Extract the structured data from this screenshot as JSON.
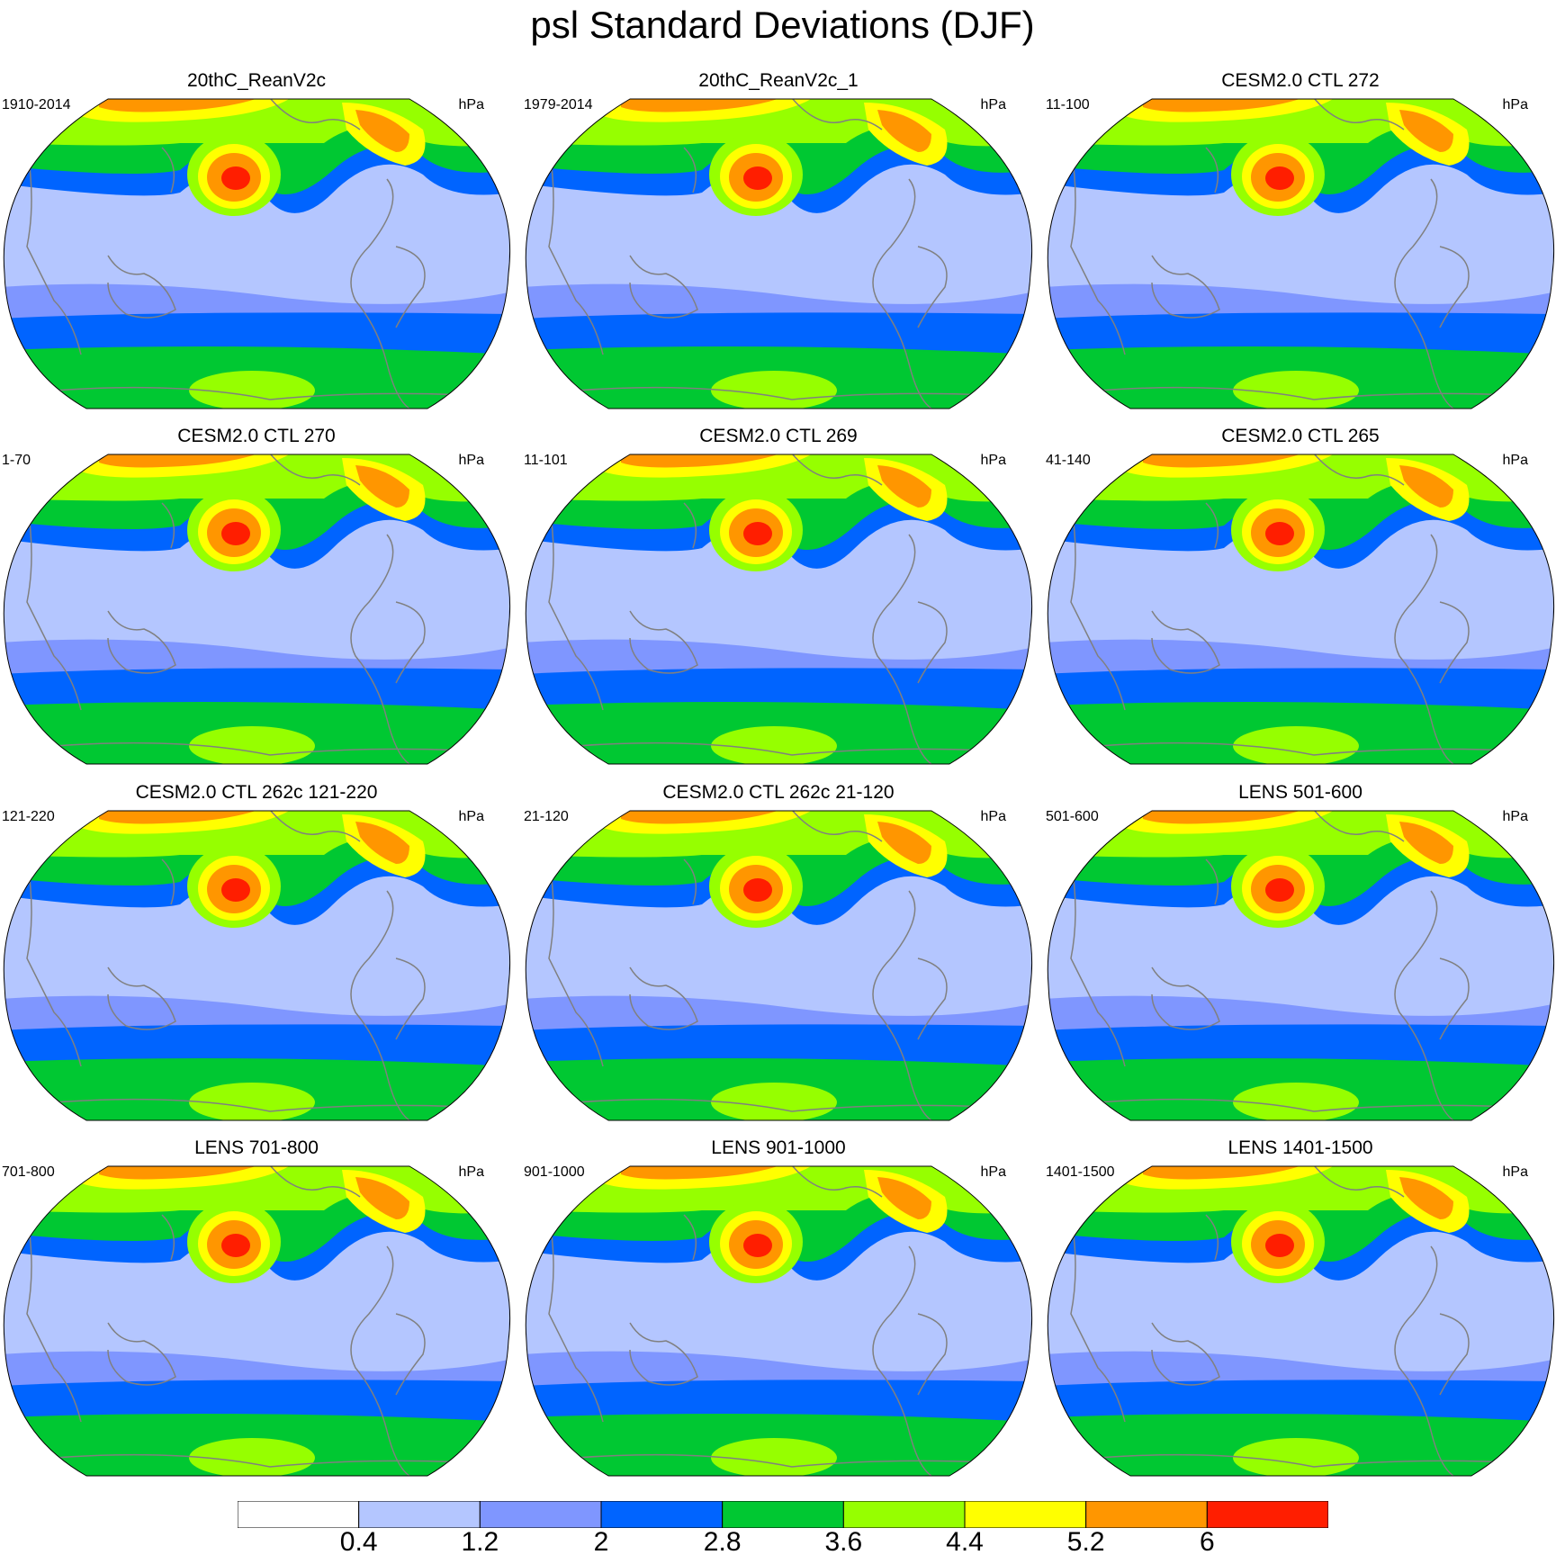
{
  "title": "psl Standard Deviations (DJF)",
  "units": "hPa",
  "panels": [
    {
      "name": "20thC_ReanV2c",
      "period": "1910-2014"
    },
    {
      "name": "20thC_ReanV2c_1",
      "period": "1979-2014"
    },
    {
      "name": "CESM2.0 CTL 272",
      "period": "11-100"
    },
    {
      "name": "CESM2.0 CTL 270",
      "period": "1-70"
    },
    {
      "name": "CESM2.0 CTL 269",
      "period": "11-101"
    },
    {
      "name": "CESM2.0 CTL 265",
      "period": "41-140"
    },
    {
      "name": "CESM2.0 CTL 262c 121-220",
      "period": "121-220"
    },
    {
      "name": "CESM2.0 CTL 262c 21-120",
      "period": "21-120"
    },
    {
      "name": "LENS 501-600",
      "period": "501-600"
    },
    {
      "name": "LENS 701-800",
      "period": "701-800"
    },
    {
      "name": "LENS 901-1000",
      "period": "901-1000"
    },
    {
      "name": "LENS 1401-1500",
      "period": "1401-1500"
    }
  ],
  "colorbar": {
    "levels": [
      "0.4",
      "1.2",
      "2",
      "2.8",
      "3.6",
      "4.4",
      "5.2",
      "6"
    ],
    "colors": [
      "#ffffff",
      "#b4c6ff",
      "#7f96ff",
      "#0064ff",
      "#00c832",
      "#96ff00",
      "#ffff00",
      "#ff9600",
      "#ff1e00"
    ]
  },
  "colors": {
    "land_outline": "#808080",
    "background": "#b4c6ff"
  }
}
